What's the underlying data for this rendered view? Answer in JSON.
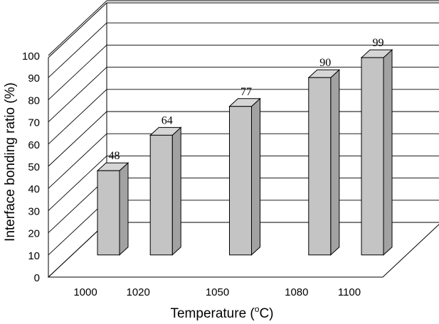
{
  "chart_data": {
    "type": "bar",
    "style": "3d-column",
    "categories": [
      "1000",
      "1020",
      "1050",
      "1080",
      "1100"
    ],
    "values": [
      48,
      64,
      77,
      90,
      99
    ],
    "data_labels": [
      "48",
      "64",
      "77",
      "90",
      "99"
    ],
    "xlabel_text": "Temperature (",
    "xlabel_sup": "o",
    "xlabel_unit": "C)",
    "ylabel": "Interface bonding ratio (%)",
    "yticks": [
      "0",
      "10",
      "20",
      "30",
      "40",
      "50",
      "60",
      "70",
      "80",
      "90",
      "100"
    ],
    "ylim": [
      0,
      100
    ],
    "grid": true,
    "colors": {
      "bar_front": "#c4c4c4",
      "bar_top": "#d6d6d6",
      "bar_side": "#a2a2a2"
    }
  }
}
